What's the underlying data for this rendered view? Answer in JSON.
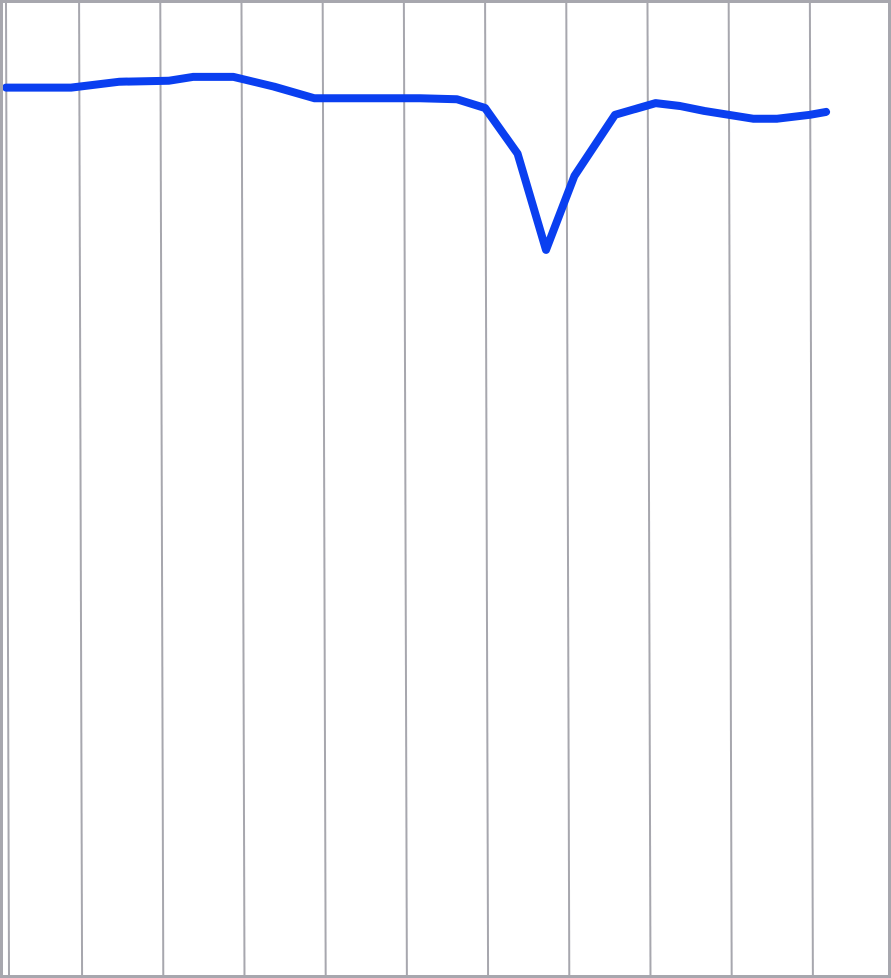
{
  "colors": {
    "background": "#ffffff",
    "grid": "#a7a7ae",
    "line": "#0a3ff0"
  },
  "chart_data": {
    "type": "line",
    "title": "",
    "xlabel": "",
    "ylabel": "",
    "grid": "vertical-only",
    "legend": "none",
    "xlim": [
      0,
      10.9
    ],
    "ylim": [
      0,
      100
    ],
    "x_gridlines": [
      0,
      0.9,
      1.9,
      2.9,
      3.9,
      4.9,
      5.9,
      6.9,
      7.9,
      8.9,
      9.9,
      10.9
    ],
    "series": [
      {
        "values": [
          [
            0.0,
            91.3
          ],
          [
            0.8,
            91.3
          ],
          [
            1.4,
            91.9
          ],
          [
            2.0,
            92.0
          ],
          [
            2.3,
            92.4
          ],
          [
            2.8,
            92.4
          ],
          [
            3.3,
            91.4
          ],
          [
            3.8,
            90.2
          ],
          [
            4.5,
            90.2
          ],
          [
            5.1,
            90.2
          ],
          [
            5.55,
            90.1
          ],
          [
            5.9,
            89.2
          ],
          [
            6.3,
            84.5
          ],
          [
            6.65,
            74.6
          ],
          [
            7.0,
            82.2
          ],
          [
            7.5,
            88.5
          ],
          [
            8.0,
            89.7
          ],
          [
            8.3,
            89.4
          ],
          [
            8.6,
            88.9
          ],
          [
            8.9,
            88.5
          ],
          [
            9.2,
            88.1
          ],
          [
            9.5,
            88.1
          ],
          [
            9.9,
            88.5
          ],
          [
            10.1,
            88.8
          ]
        ]
      }
    ]
  }
}
